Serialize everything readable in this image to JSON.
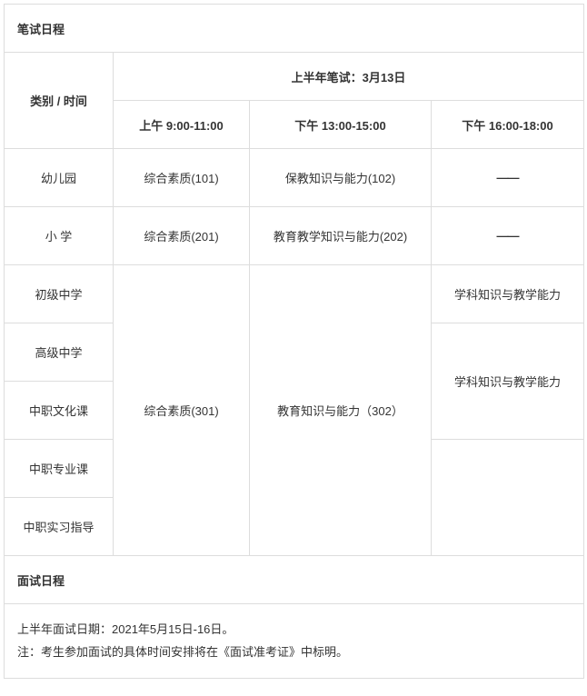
{
  "written": {
    "section_title": "笔试日程",
    "category_time_label": "类别  /  时间",
    "super_header": "上半年笔试：3月13日",
    "time_slots": {
      "am": "上午 9:00-11:00",
      "pm1": "下午 13:00-15:00",
      "pm2": "下午 16:00-18:00"
    },
    "rows": {
      "kindergarten": {
        "label": "幼儿园",
        "am": "综合素质(101)",
        "pm1": "保教知识与能力(102)",
        "pm2": "——"
      },
      "primary": {
        "label": "小   学",
        "am": "综合素质(201)",
        "pm1": "教育教学知识与能力(202)",
        "pm2": "——"
      },
      "junior": {
        "label": "初级中学",
        "pm2": "学科知识与教学能力"
      },
      "senior": {
        "label": "高级中学"
      },
      "voc_culture": {
        "label": "中职文化课",
        "pm2": "学科知识与教学能力"
      },
      "voc_pro": {
        "label": "中职专业课"
      },
      "voc_intern": {
        "label": "中职实习指导"
      },
      "merged_am": "综合素质(301)",
      "merged_pm1": "教育知识与能力（302）"
    }
  },
  "interview": {
    "section_title": "面试日程",
    "line1": "上半年面试日期：2021年5月15日-16日。",
    "line2": "注：考生参加面试的具体时间安排将在《面试准考证》中标明。"
  },
  "colors": {
    "border": "#dddddd",
    "text": "#333333",
    "background": "#ffffff"
  },
  "font": {
    "family": "Microsoft YaHei",
    "size_pt": 10
  }
}
